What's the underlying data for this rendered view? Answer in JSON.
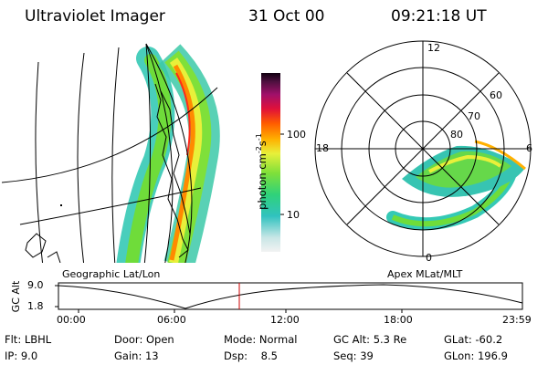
{
  "header": {
    "title": "Ultraviolet Imager",
    "date": "31 Oct 00",
    "time": "09:21:18 UT"
  },
  "colorbar": {
    "label": "photon cm^-2 s^-1",
    "label_base": "photon cm",
    "label_exp1": "-2",
    "label_mid": "s",
    "label_exp2": "-1",
    "ticks": [
      "100",
      "10"
    ],
    "tick_values": [
      100,
      10
    ]
  },
  "left_map": {
    "caption": "Geographic Lat/Lon"
  },
  "right_map": {
    "caption": "Apex MLat/MLT",
    "mlt_labels": {
      "top": "12",
      "left": "18",
      "right": "6",
      "bottom": "0"
    },
    "lat_labels": [
      "60",
      "70",
      "80"
    ]
  },
  "timeline": {
    "ylabel": "GC Alt",
    "yticks": [
      "9.0",
      "1.8"
    ],
    "ytick_values": [
      9.0,
      1.8
    ],
    "xticks": [
      "00:00",
      "06:00",
      "12:00",
      "18:00",
      "23:59"
    ],
    "current_time_hours": 9.355
  },
  "status": {
    "flt": {
      "label": "Flt:",
      "value": "LBHL"
    },
    "ip": {
      "label": "IP:",
      "value": "9.0"
    },
    "door": {
      "label": "Door:",
      "value": "Open"
    },
    "gain": {
      "label": "Gain:",
      "value": "13"
    },
    "mode": {
      "label": "Mode:",
      "value": "Normal"
    },
    "dsp": {
      "label": "Dsp:",
      "value": "8.5"
    },
    "gcalt": {
      "label": "GC Alt:",
      "value": "5.3 Re"
    },
    "seq": {
      "label": "Seq:",
      "value": "39"
    },
    "glat": {
      "label": "GLat:",
      "value": "-60.2"
    },
    "glon": {
      "label": "GLon:",
      "value": "196.9"
    }
  },
  "colors": {
    "marker": "#cc0000",
    "aurora_low": "#2ec4c0",
    "aurora_mid": "#6fdc3a",
    "aurora_high": "#ff8a00",
    "aurora_peak": "#ff2a1a"
  }
}
